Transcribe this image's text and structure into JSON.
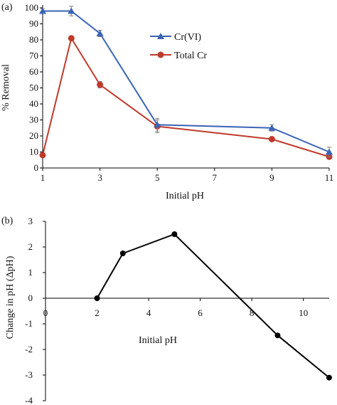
{
  "colors": {
    "cr_vi": "#3A63B5",
    "total_cr": "#C0392B",
    "black": "#000000",
    "errorbar": "#7f7f7f"
  },
  "chart_data": [
    {
      "panel": "(a)",
      "type": "line",
      "xlabel": "Initial pH",
      "ylabel": "% Removal",
      "xlim": [
        1,
        11
      ],
      "ylim": [
        0,
        100
      ],
      "xticks": [
        1,
        3,
        5,
        7,
        9,
        11
      ],
      "yticks": [
        0,
        10,
        20,
        30,
        40,
        50,
        60,
        70,
        80,
        90,
        100
      ],
      "legend": "right",
      "series": [
        {
          "name": "Cr(VI)",
          "marker": "triangle",
          "color": "#3A63B5",
          "x": [
            1,
            2,
            3,
            5,
            9,
            11
          ],
          "y": [
            98,
            98,
            84,
            27,
            25,
            10
          ],
          "err": [
            1.5,
            3,
            2,
            4,
            2,
            3
          ]
        },
        {
          "name": "Total Cr",
          "marker": "circle",
          "color": "#C0392B",
          "x": [
            1,
            2,
            3,
            5,
            9,
            11
          ],
          "y": [
            8,
            81,
            52,
            26,
            18,
            7
          ],
          "err": [
            0,
            0,
            2,
            4,
            0,
            0
          ]
        }
      ]
    },
    {
      "panel": "(b)",
      "type": "line",
      "xlabel": "Initial pH",
      "ylabel": "Change in pH (ΔpH)",
      "xlim": [
        0,
        11
      ],
      "ylim": [
        -4,
        3
      ],
      "xticks": [
        0,
        2,
        4,
        6,
        8,
        10
      ],
      "yticks": [
        -4,
        -3,
        -2,
        -1,
        0,
        1,
        2,
        3
      ],
      "series": [
        {
          "name": "",
          "marker": "circle",
          "color": "#000000",
          "x": [
            2,
            3,
            5,
            9,
            11
          ],
          "y": [
            0,
            1.75,
            2.5,
            -1.45,
            -3.1
          ]
        }
      ]
    }
  ]
}
